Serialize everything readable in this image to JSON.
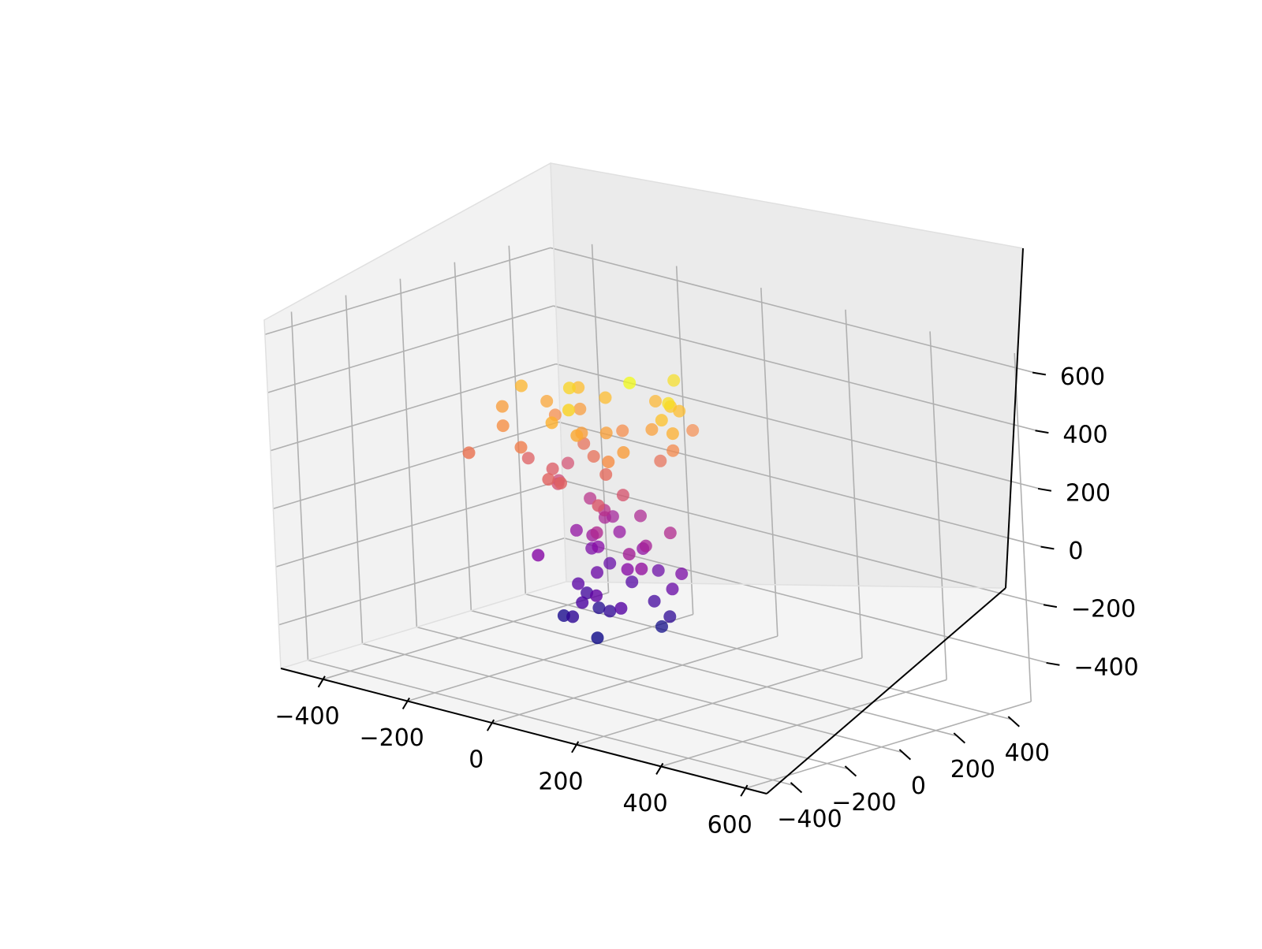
{
  "chart_data": {
    "type": "scatter",
    "projection": "3d",
    "title": "",
    "xlabel": "",
    "ylabel": "",
    "zlabel": "",
    "colormap": "plasma",
    "color_by": "z",
    "grid": true,
    "legend": "none",
    "xlim": [
      -500,
      650
    ],
    "ylim": [
      -500,
      550
    ],
    "zlim": [
      -550,
      650
    ],
    "x_ticks": [
      -400,
      -200,
      0,
      200,
      400,
      600
    ],
    "y_ticks": [
      -400,
      -200,
      0,
      200,
      400
    ],
    "z_ticks": [
      -400,
      -200,
      0,
      200,
      400,
      600
    ],
    "x_tick_labels": [
      "−400",
      "−200",
      "0",
      "200",
      "400",
      "600"
    ],
    "y_tick_labels": [
      "−400",
      "−200",
      "0",
      "200",
      "400"
    ],
    "z_tick_labels": [
      "−400",
      "−200",
      "0",
      "200",
      "400",
      "600"
    ],
    "points": [
      [
        -49,
        41,
        398
      ],
      [
        84,
        -70,
        530
      ],
      [
        149,
        -31,
        473
      ],
      [
        -176,
        20,
        344
      ],
      [
        60,
        127,
        474
      ],
      [
        -211,
        -218,
        221
      ],
      [
        100,
        50,
        421
      ],
      [
        -124,
        58,
        400
      ],
      [
        21,
        -200,
        450
      ],
      [
        -123,
        59,
        326
      ],
      [
        154,
        -28,
        370
      ],
      [
        106,
        72,
        401
      ],
      [
        134,
        -36,
        411
      ],
      [
        -231,
        -59,
        328
      ],
      [
        -187,
        65,
        280
      ],
      [
        113,
        -148,
        324
      ],
      [
        -197,
        -111,
        289
      ],
      [
        64,
        33,
        333
      ],
      [
        -220,
        -3,
        387
      ],
      [
        -70,
        -56,
        451
      ],
      [
        21,
        -175,
        355
      ],
      [
        15,
        125,
        386
      ],
      [
        18,
        -63,
        331
      ],
      [
        -119,
        61,
        208
      ],
      [
        103,
        47,
        271
      ],
      [
        -187,
        -40,
        161
      ],
      [
        -33,
        73,
        281
      ],
      [
        -40,
        -171,
        375
      ],
      [
        -22,
        -92,
        324
      ],
      [
        -180,
        92,
        109
      ],
      [
        15,
        -67,
        188
      ],
      [
        50,
        80,
        206
      ],
      [
        89,
        -168,
        288
      ],
      [
        -128,
        -43,
        147
      ],
      [
        -56,
        -1,
        205
      ],
      [
        -103,
        -64,
        111
      ],
      [
        -63,
        -158,
        168
      ],
      [
        -134,
        -145,
        248
      ],
      [
        48,
        205,
        275
      ],
      [
        -121,
        77,
        14
      ],
      [
        39,
        -45,
        120
      ],
      [
        -26,
        113,
        -21
      ],
      [
        -34,
        -158,
        166
      ],
      [
        -59,
        33,
        9
      ],
      [
        -151,
        12,
        83
      ],
      [
        69,
        -182,
        134
      ],
      [
        -81,
        67,
        -34
      ],
      [
        99,
        29,
        -9
      ],
      [
        -1,
        -86,
        -13
      ],
      [
        -95,
        117,
        -50
      ],
      [
        84,
        -39,
        -40
      ],
      [
        112,
        -101,
        -91
      ],
      [
        -140,
        51,
        -96
      ],
      [
        -63,
        -8,
        -67
      ],
      [
        -72,
        104,
        -91
      ],
      [
        90,
        -110,
        -46
      ],
      [
        16,
        53,
        -101
      ],
      [
        -118,
        70,
        -155
      ],
      [
        -119,
        -124,
        -124
      ],
      [
        -75,
        29,
        -122
      ],
      [
        101,
        24,
        -200
      ],
      [
        12,
        111,
        -194
      ],
      [
        54,
        -64,
        -125
      ],
      [
        -55,
        -10,
        -192
      ],
      [
        107,
        51,
        -153
      ],
      [
        -83,
        -38,
        -233
      ],
      [
        -100,
        106,
        -210
      ],
      [
        17,
        -126,
        -212
      ],
      [
        -38,
        89,
        -246
      ],
      [
        -93,
        7,
        -281
      ],
      [
        -28,
        -110,
        -257
      ],
      [
        36,
        55,
        -275
      ],
      [
        67,
        -114,
        -240
      ],
      [
        -49,
        -115,
        -312
      ],
      [
        -21,
        -22,
        -309
      ],
      [
        70,
        57,
        -316
      ],
      [
        -85,
        36,
        -338
      ],
      [
        -117,
        -44,
        -354
      ],
      [
        0,
        -103,
        -370
      ],
      [
        37,
        76,
        -368
      ]
    ]
  }
}
